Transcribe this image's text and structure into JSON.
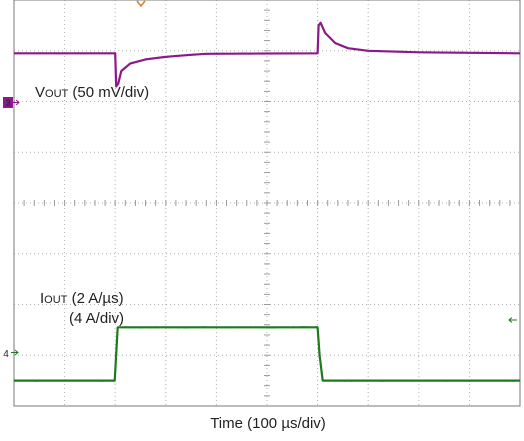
{
  "chart_data": {
    "type": "line",
    "title": "",
    "xlabel": "Time (100 µs/div)",
    "grid": true,
    "x_divisions": 10,
    "y_divisions": 8,
    "series": [
      {
        "name": "VOUT (50 mV/div)",
        "label_main": "V",
        "label_sub": "OUT",
        "label_rest": " (50 mV/div)",
        "channel": "3",
        "color": "#8b1a8b",
        "x": [
          0,
          2.0,
          2.02,
          2.06,
          2.12,
          2.3,
          2.6,
          3.0,
          3.5,
          3.8,
          6.0,
          6.02,
          6.06,
          6.15,
          6.35,
          6.6,
          7.0,
          8.0,
          10.0
        ],
        "y": [
          2.95,
          2.95,
          2.3,
          2.35,
          2.6,
          2.75,
          2.83,
          2.88,
          2.92,
          2.94,
          2.95,
          3.5,
          3.55,
          3.35,
          3.15,
          3.05,
          3.0,
          2.97,
          2.95
        ]
      },
      {
        "name": "IOUT (2 A/µs) (4 A/div)",
        "label_main": "I",
        "label_sub": "OUT",
        "label_rest": " (2 A/µs)",
        "label_line2": "(4 A/div)",
        "channel": "4",
        "color": "#1e7a1e",
        "x": [
          0,
          1.99,
          2.05,
          3.0,
          6.0,
          6.04,
          6.1,
          10.0
        ],
        "y": [
          -3.5,
          -3.5,
          -2.45,
          -2.45,
          -2.45,
          -3.0,
          -3.5,
          -3.5
        ]
      }
    ]
  }
}
